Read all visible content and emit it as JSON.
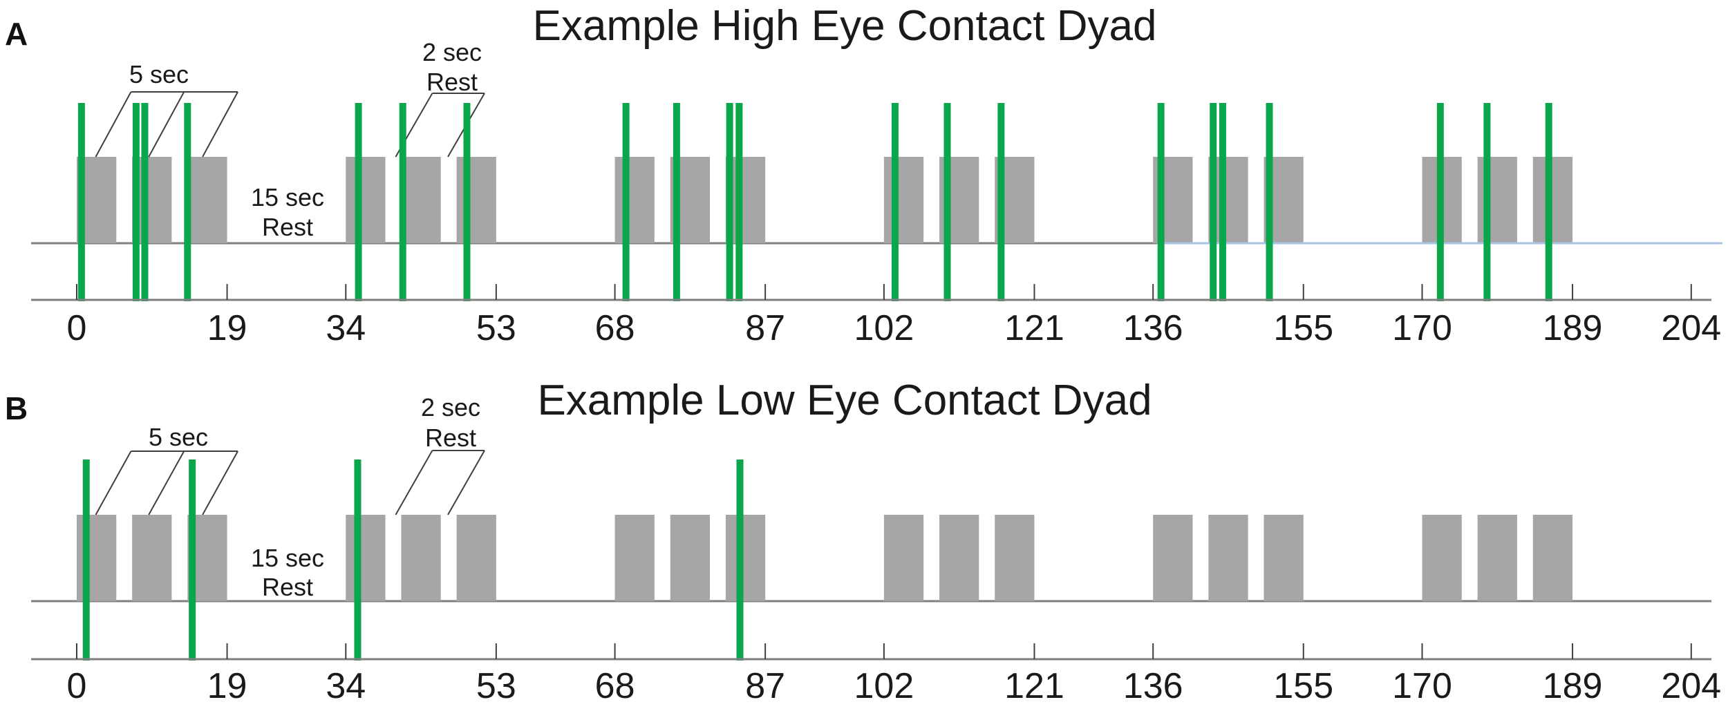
{
  "figure": {
    "background_color": "#ffffff",
    "panels": [
      {
        "letter": "A",
        "title": "Example High Eye Contact Dyad"
      },
      {
        "letter": "B",
        "title": "Example Low Eye Contact Dyad"
      }
    ]
  },
  "annotations": {
    "block_duration_label": "5 sec",
    "short_rest_label_line1": "2 sec",
    "short_rest_label_line2": "Rest",
    "long_rest_label_line1": "15 sec",
    "long_rest_label_line2": "Rest",
    "block_leader_targets_sec": [
      2.4,
      9.1,
      15.9
    ],
    "short_rest_leader_targets_sec": [
      40.3,
      46.9
    ]
  },
  "colors": {
    "task_block": "#a6a6a6",
    "eye_contact_event": "#0aa64c",
    "baseline": "#7f7f7f",
    "axis": "#7f7f7f",
    "tick": "#3f3f3f",
    "leader_line": "#3f3f3f",
    "blue_highlight": "#a8c4e4",
    "text": "#1a1a1a"
  },
  "chart_data": [
    {
      "type": "bar",
      "subtype": "event-timeline",
      "panel": "A",
      "title": "Example High Eye Contact Dyad",
      "xlim": [
        0,
        204
      ],
      "x_ticks": [
        0,
        19,
        34,
        53,
        68,
        87,
        102,
        121,
        136,
        155,
        170,
        189,
        204
      ],
      "grid": false,
      "task_blocks_sec": [
        [
          0,
          5
        ],
        [
          7,
          12
        ],
        [
          14,
          19
        ],
        [
          34,
          39
        ],
        [
          41,
          46
        ],
        [
          48,
          53
        ],
        [
          68,
          73
        ],
        [
          75,
          80
        ],
        [
          82,
          87
        ],
        [
          102,
          107
        ],
        [
          109,
          114
        ],
        [
          116,
          121
        ],
        [
          136,
          141
        ],
        [
          143,
          148
        ],
        [
          150,
          155
        ],
        [
          170,
          175
        ],
        [
          177,
          182
        ],
        [
          184,
          189
        ]
      ],
      "eye_contact_events_sec": [
        0.6,
        7.5,
        8.6,
        14,
        35.6,
        41.2,
        49.3,
        69.4,
        75.8,
        82.5,
        83.7,
        103.4,
        110,
        116.8,
        137,
        143.6,
        144.8,
        150.7,
        172.3,
        178.2,
        186
      ],
      "blue_line_from_sec": 136.5,
      "structure": {
        "block_sec": 5,
        "inter_block_rest_sec": 2,
        "inter_group_rest_sec": 15,
        "blocks_per_group": 3,
        "n_groups": 6,
        "total_sec": 204
      }
    },
    {
      "type": "bar",
      "subtype": "event-timeline",
      "panel": "B",
      "title": "Example Low Eye Contact Dyad",
      "xlim": [
        0,
        204
      ],
      "x_ticks": [
        0,
        19,
        34,
        53,
        68,
        87,
        102,
        121,
        136,
        155,
        170,
        189,
        204
      ],
      "grid": false,
      "task_blocks_sec": [
        [
          0,
          5
        ],
        [
          7,
          12
        ],
        [
          14,
          19
        ],
        [
          34,
          39
        ],
        [
          41,
          46
        ],
        [
          48,
          53
        ],
        [
          68,
          73
        ],
        [
          75,
          80
        ],
        [
          82,
          87
        ],
        [
          102,
          107
        ],
        [
          109,
          114
        ],
        [
          116,
          121
        ],
        [
          136,
          141
        ],
        [
          143,
          148
        ],
        [
          150,
          155
        ],
        [
          170,
          175
        ],
        [
          177,
          182
        ],
        [
          184,
          189
        ]
      ],
      "eye_contact_events_sec": [
        1.2,
        14.6,
        35.5,
        83.8
      ],
      "blue_line_from_sec": null,
      "structure": {
        "block_sec": 5,
        "inter_block_rest_sec": 2,
        "inter_group_rest_sec": 15,
        "blocks_per_group": 3,
        "n_groups": 6,
        "total_sec": 204
      }
    }
  ]
}
